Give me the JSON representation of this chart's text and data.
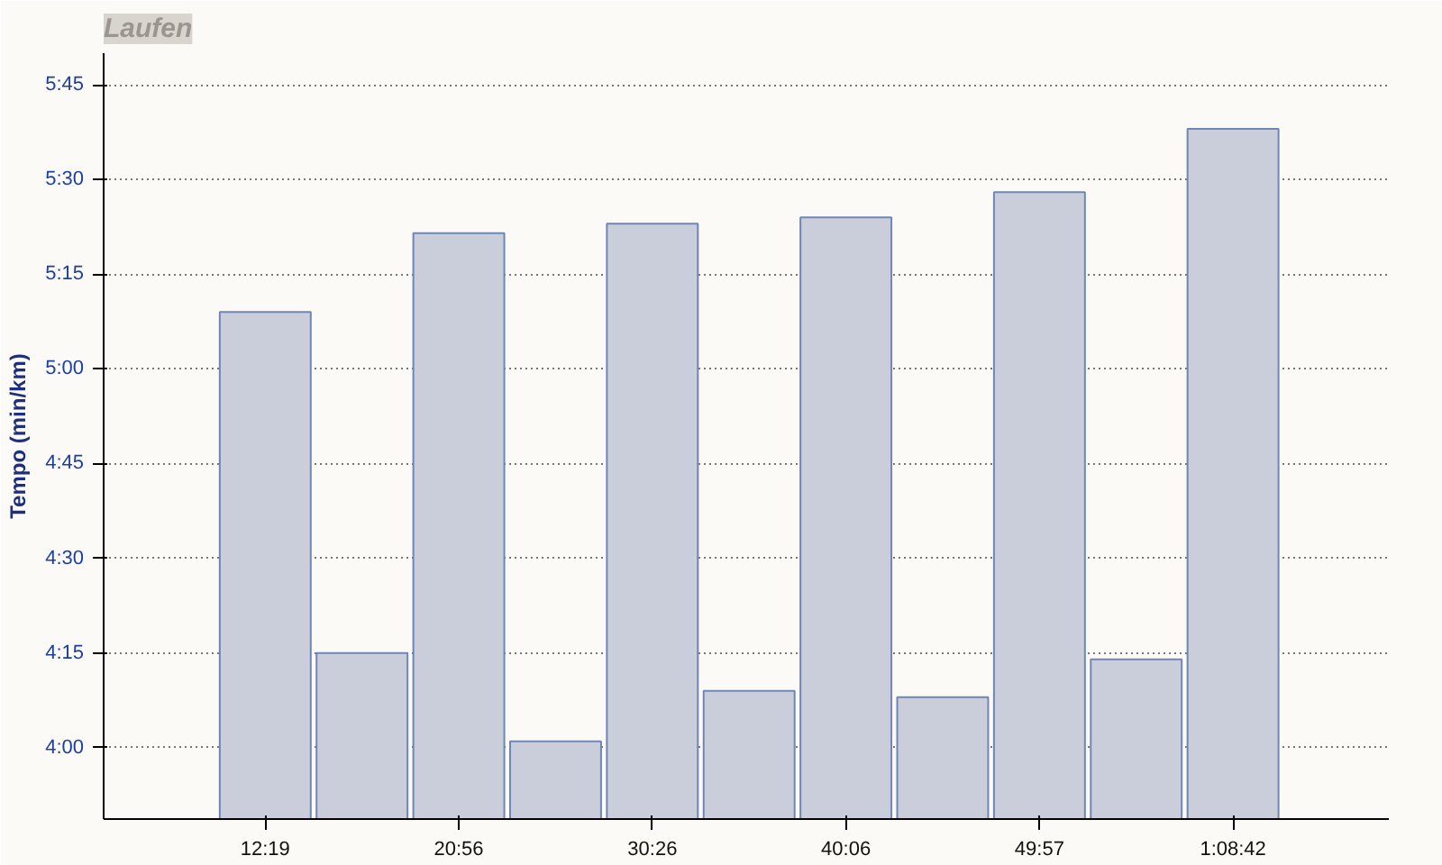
{
  "chart_data": {
    "type": "bar",
    "title": "Laufen",
    "ylabel": "Tempo (min/km)",
    "categories": [
      "12:19",
      null,
      "20:56",
      null,
      "30:26",
      null,
      "40:06",
      null,
      "49:57",
      null,
      "1:08:42"
    ],
    "values": [
      309,
      255,
      321.5,
      241,
      323,
      249,
      324,
      248,
      328,
      254,
      338
    ],
    "color": "#c9ceda",
    "ylim": [
      228.7,
      350
    ],
    "yticks": [
      {
        "value": 240,
        "label": "4:00"
      },
      {
        "value": 255,
        "label": "4:15"
      },
      {
        "value": 270,
        "label": "4:30"
      },
      {
        "value": 285,
        "label": "4:45"
      },
      {
        "value": 300,
        "label": "5:00"
      },
      {
        "value": 315,
        "label": "5:15"
      },
      {
        "value": 330,
        "label": "5:30"
      },
      {
        "value": 345,
        "label": "5:45"
      }
    ],
    "grid": "y"
  }
}
